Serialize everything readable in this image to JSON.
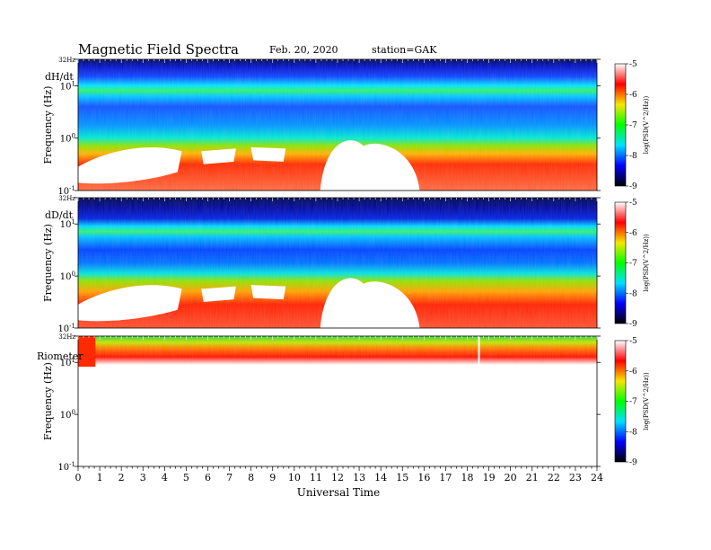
{
  "header": {
    "title": "Magnetic Field Spectra",
    "date": "Feb. 20, 2020",
    "station": "station=GAK"
  },
  "colorbar": {
    "label": "log(PSD(V^2/Hz))",
    "ticks": [
      "-5",
      "-6",
      "-7",
      "-8",
      "-9"
    ],
    "colors": [
      "#ffffff",
      "#ff0000",
      "#f6e600",
      "#00ff00",
      "#00e0ff",
      "#0000ff",
      "#000000"
    ]
  },
  "chart_data": {
    "type": "heatmap",
    "xlabel": "Universal Time",
    "ylabel": "Frequency (Hz)",
    "xlim": [
      0,
      24
    ],
    "x_ticks": [
      "0",
      "1",
      "2",
      "3",
      "4",
      "5",
      "6",
      "7",
      "8",
      "9",
      "10",
      "11",
      "12",
      "13",
      "14",
      "15",
      "16",
      "17",
      "18",
      "19",
      "20",
      "21",
      "22",
      "23",
      "24"
    ],
    "y_scale": "log",
    "y_ticks": [
      {
        "value": 32,
        "label": "32Hz"
      },
      {
        "value": 10,
        "label": "10",
        "sup": "1"
      },
      {
        "value": 1,
        "label": "10",
        "sup": "0"
      },
      {
        "value": 0.1,
        "label": "10",
        "sup": "-1"
      }
    ],
    "panels": [
      {
        "channel": "dH/dt"
      },
      {
        "channel": "dD/dt"
      },
      {
        "channel": "Riometer"
      }
    ]
  }
}
